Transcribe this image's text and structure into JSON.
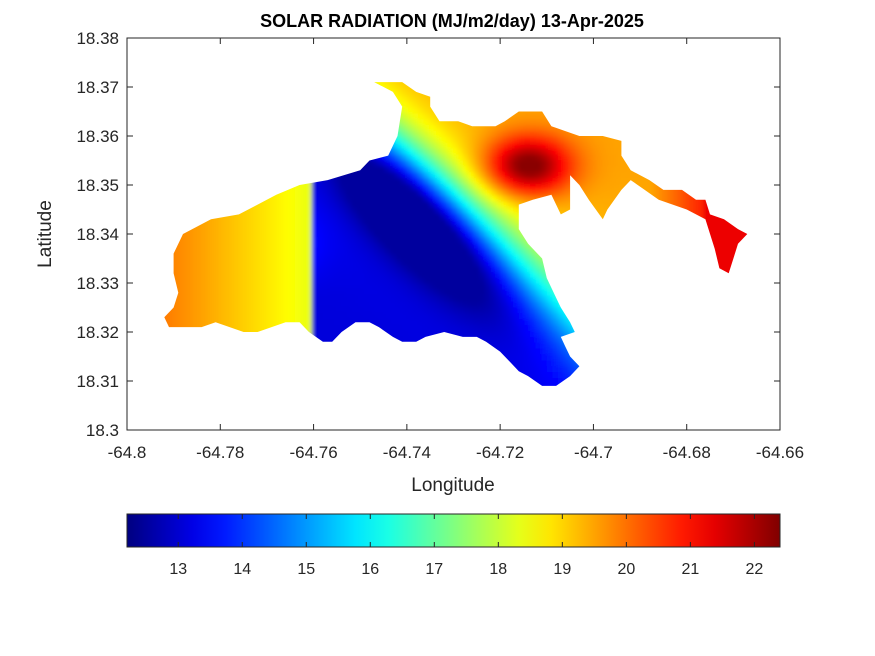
{
  "chart_data": {
    "type": "heatmap",
    "title": "SOLAR RADIATION (MJ/m2/day) 13-Apr-2025",
    "xlabel": "Longitude",
    "ylabel": "Latitude",
    "xlim": [
      -64.8,
      -64.66
    ],
    "ylim": [
      18.3,
      18.38
    ],
    "x_ticks": [
      "-64.8",
      "-64.78",
      "-64.76",
      "-64.74",
      "-64.72",
      "-64.7",
      "-64.68",
      "-64.66"
    ],
    "y_ticks": [
      "18.3",
      "18.31",
      "18.32",
      "18.33",
      "18.34",
      "18.35",
      "18.36",
      "18.37",
      "18.38"
    ],
    "colorbar": {
      "colormap": "jet",
      "range": [
        12.2,
        22.4
      ],
      "ticks": [
        "13",
        "14",
        "15",
        "16",
        "17",
        "18",
        "19",
        "20",
        "21",
        "22"
      ]
    },
    "grid": false,
    "field": {
      "min_center": {
        "lon": -64.738,
        "lat": 18.341,
        "value": 12.6
      },
      "max_center": {
        "lon": -64.714,
        "lat": 18.354,
        "value": 22.2
      },
      "west_high": {
        "lon": -64.772,
        "lat": 18.338,
        "value": 19.8
      },
      "east_value": 21.3
    },
    "land_outline": [
      [
        -64.79,
        18.336
      ],
      [
        -64.788,
        18.34
      ],
      [
        -64.782,
        18.343
      ],
      [
        -64.776,
        18.344
      ],
      [
        -64.772,
        18.346
      ],
      [
        -64.768,
        18.348
      ],
      [
        -64.763,
        18.35
      ],
      [
        -64.757,
        18.351
      ],
      [
        -64.75,
        18.353
      ],
      [
        -64.748,
        18.355
      ],
      [
        -64.744,
        18.356
      ],
      [
        -64.742,
        18.36
      ],
      [
        -64.741,
        18.366
      ],
      [
        -64.743,
        18.369
      ],
      [
        -64.747,
        18.371
      ],
      [
        -64.741,
        18.371
      ],
      [
        -64.738,
        18.369
      ],
      [
        -64.735,
        18.368
      ],
      [
        -64.735,
        18.366
      ],
      [
        -64.733,
        18.363
      ],
      [
        -64.729,
        18.363
      ],
      [
        -64.726,
        18.362
      ],
      [
        -64.721,
        18.362
      ],
      [
        -64.719,
        18.363
      ],
      [
        -64.716,
        18.365
      ],
      [
        -64.711,
        18.365
      ],
      [
        -64.709,
        18.362
      ],
      [
        -64.706,
        18.361
      ],
      [
        -64.703,
        18.36
      ],
      [
        -64.698,
        18.36
      ],
      [
        -64.694,
        18.359
      ],
      [
        -64.694,
        18.356
      ],
      [
        -64.692,
        18.353
      ],
      [
        -64.688,
        18.351
      ],
      [
        -64.685,
        18.349
      ],
      [
        -64.681,
        18.349
      ],
      [
        -64.678,
        18.347
      ],
      [
        -64.676,
        18.347
      ],
      [
        -64.675,
        18.344
      ],
      [
        -64.672,
        18.343
      ],
      [
        -64.669,
        18.341
      ],
      [
        -64.667,
        18.34
      ],
      [
        -64.669,
        18.338
      ],
      [
        -64.67,
        18.335
      ],
      [
        -64.671,
        18.332
      ],
      [
        -64.673,
        18.333
      ],
      [
        -64.674,
        18.337
      ],
      [
        -64.676,
        18.343
      ],
      [
        -64.68,
        18.345
      ],
      [
        -64.683,
        18.346
      ],
      [
        -64.686,
        18.347
      ],
      [
        -64.689,
        18.349
      ],
      [
        -64.692,
        18.351
      ],
      [
        -64.694,
        18.349
      ],
      [
        -64.697,
        18.345
      ],
      [
        -64.698,
        18.343
      ],
      [
        -64.701,
        18.347
      ],
      [
        -64.703,
        18.35
      ],
      [
        -64.705,
        18.352
      ],
      [
        -64.705,
        18.345
      ],
      [
        -64.707,
        18.344
      ],
      [
        -64.709,
        18.348
      ],
      [
        -64.713,
        18.347
      ],
      [
        -64.716,
        18.346
      ],
      [
        -64.716,
        18.341
      ],
      [
        -64.714,
        18.338
      ],
      [
        -64.711,
        18.335
      ],
      [
        -64.71,
        18.331
      ],
      [
        -64.708,
        18.327
      ],
      [
        -64.707,
        18.325
      ],
      [
        -64.705,
        18.322
      ],
      [
        -64.704,
        18.32
      ],
      [
        -64.707,
        18.319
      ],
      [
        -64.706,
        18.317
      ],
      [
        -64.705,
        18.315
      ],
      [
        -64.703,
        18.313
      ],
      [
        -64.705,
        18.311
      ],
      [
        -64.708,
        18.309
      ],
      [
        -64.711,
        18.309
      ],
      [
        -64.714,
        18.311
      ],
      [
        -64.716,
        18.312
      ],
      [
        -64.718,
        18.314
      ],
      [
        -64.72,
        18.316
      ],
      [
        -64.723,
        18.318
      ],
      [
        -64.725,
        18.319
      ],
      [
        -64.728,
        18.319
      ],
      [
        -64.732,
        18.32
      ],
      [
        -64.736,
        18.319
      ],
      [
        -64.738,
        18.318
      ],
      [
        -64.741,
        18.318
      ],
      [
        -64.743,
        18.319
      ],
      [
        -64.746,
        18.321
      ],
      [
        -64.748,
        18.322
      ],
      [
        -64.751,
        18.322
      ],
      [
        -64.754,
        18.32
      ],
      [
        -64.756,
        18.318
      ],
      [
        -64.758,
        18.318
      ],
      [
        -64.761,
        18.32
      ],
      [
        -64.763,
        18.322
      ],
      [
        -64.766,
        18.322
      ],
      [
        -64.769,
        18.321
      ],
      [
        -64.772,
        18.32
      ],
      [
        -64.775,
        18.32
      ],
      [
        -64.778,
        18.321
      ],
      [
        -64.781,
        18.322
      ],
      [
        -64.784,
        18.321
      ],
      [
        -64.787,
        18.321
      ],
      [
        -64.791,
        18.321
      ],
      [
        -64.792,
        18.323
      ],
      [
        -64.79,
        18.325
      ],
      [
        -64.789,
        18.328
      ],
      [
        -64.79,
        18.332
      ]
    ]
  }
}
